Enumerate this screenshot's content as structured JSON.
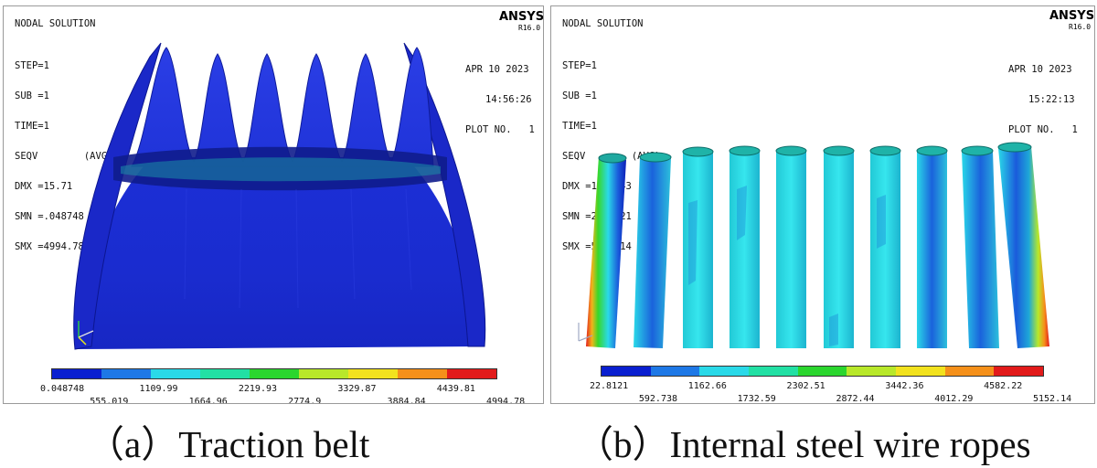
{
  "panel_a": {
    "header": "NODAL SOLUTION",
    "brand": "ANSYS",
    "version": "R16.0",
    "info": [
      "STEP=1",
      "SUB =1",
      "TIME=1",
      "SEQV        (AVG)",
      "DMX =15.71",
      "SMN =.048748",
      "SMX =4994.78"
    ],
    "date": "APR 10 2023",
    "time": "14:56:26",
    "plot": "PLOT NO.   1",
    "legend_top": [
      "555.019",
      "1664.96",
      "2774.9",
      "3884.84",
      "4994.78"
    ],
    "legend_bottom": [
      "0.048748",
      "1109.99",
      "2219.93",
      "3329.87",
      "4439.81"
    ],
    "caption": "（a）Traction belt"
  },
  "panel_b": {
    "header": "NODAL SOLUTION",
    "brand": "ANSYS",
    "version": "R16.0",
    "info": [
      "STEP=1",
      "SUB =1",
      "TIME=1",
      "SEQV        (AVG)",
      "DMX =1.21843",
      "SMN =22.8121",
      "SMX =5152.14"
    ],
    "date": "APR 10 2023",
    "time": "15:22:13",
    "plot": "PLOT NO.   1",
    "legend_upper": [
      "22.8121",
      "1162.66",
      "2302.51",
      "3442.36",
      "4582.22"
    ],
    "legend_lower": [
      "592.738",
      "1732.59",
      "2872.44",
      "4012.29",
      "5152.14"
    ],
    "caption": "（b）Internal steel wire ropes"
  },
  "colormap": [
    "#0a1fd0",
    "#1e78e6",
    "#2ad9e8",
    "#22e0a4",
    "#2bd62e",
    "#b8e82a",
    "#f2e21e",
    "#f5901a",
    "#e21b1b"
  ]
}
